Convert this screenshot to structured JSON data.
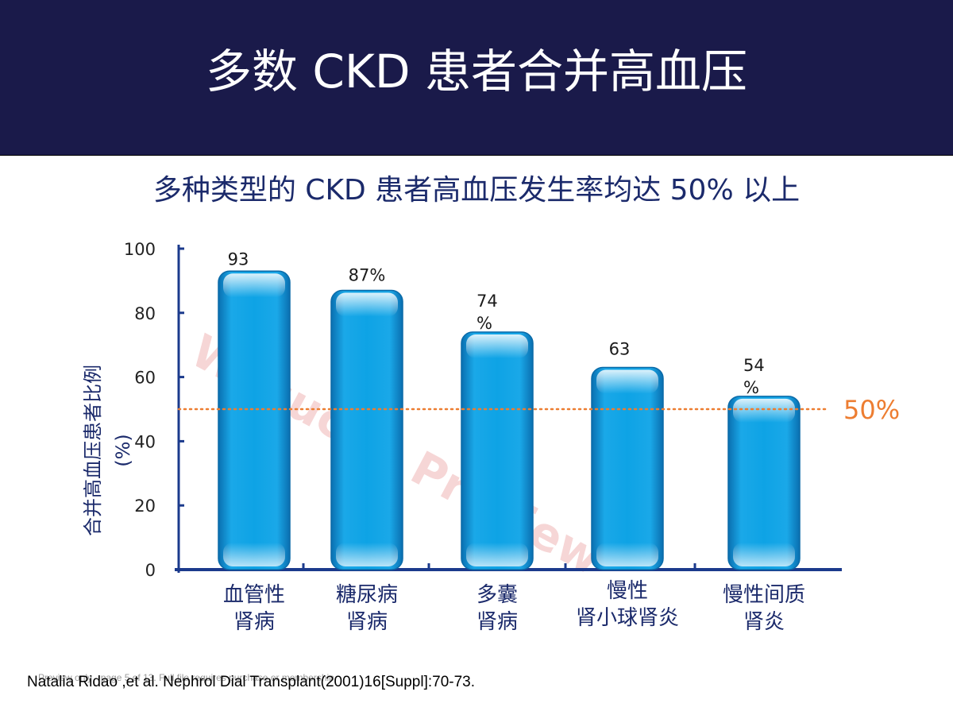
{
  "header": {
    "title": "多数 CKD 患者合并高血压"
  },
  "subtitle": "多种类型的 CKD 患者高血压发生率均达 50% 以上",
  "citation": "Natalia Ridao ,et al. Nephrol Dial Transplant(2001)16[Suppl]:70-73.",
  "preview_note": "Preview only - page 5 of 13. Full file requires purchase or membership.",
  "watermark": "Wksucha Preview",
  "colors": {
    "header_bg": "#1a1a4a",
    "bar": "#0f9ee0",
    "axis": "#1b3a8c",
    "reference_line": "#ed7d31",
    "watermark": "#e06a6a"
  },
  "chart_data": {
    "type": "bar",
    "categories": [
      [
        "血管性",
        "肾病"
      ],
      [
        "糖尿病",
        "肾病"
      ],
      [
        "多囊",
        "肾病"
      ],
      [
        "慢性",
        "肾小球肾炎"
      ],
      [
        "慢性间质",
        "肾炎"
      ]
    ],
    "values": [
      93,
      87,
      74,
      63,
      54
    ],
    "data_labels": [
      [
        "93"
      ],
      [
        "87%"
      ],
      [
        "74",
        "%"
      ],
      [
        "63"
      ],
      [
        "54",
        "%"
      ]
    ],
    "ylabel": [
      "合并高血压患者比例",
      "(%)"
    ],
    "yticks": [
      "0",
      "20",
      "40",
      "60",
      "80",
      "100"
    ],
    "ylim": [
      0,
      100
    ],
    "reference_line": {
      "value": 50,
      "label": "50%"
    }
  }
}
